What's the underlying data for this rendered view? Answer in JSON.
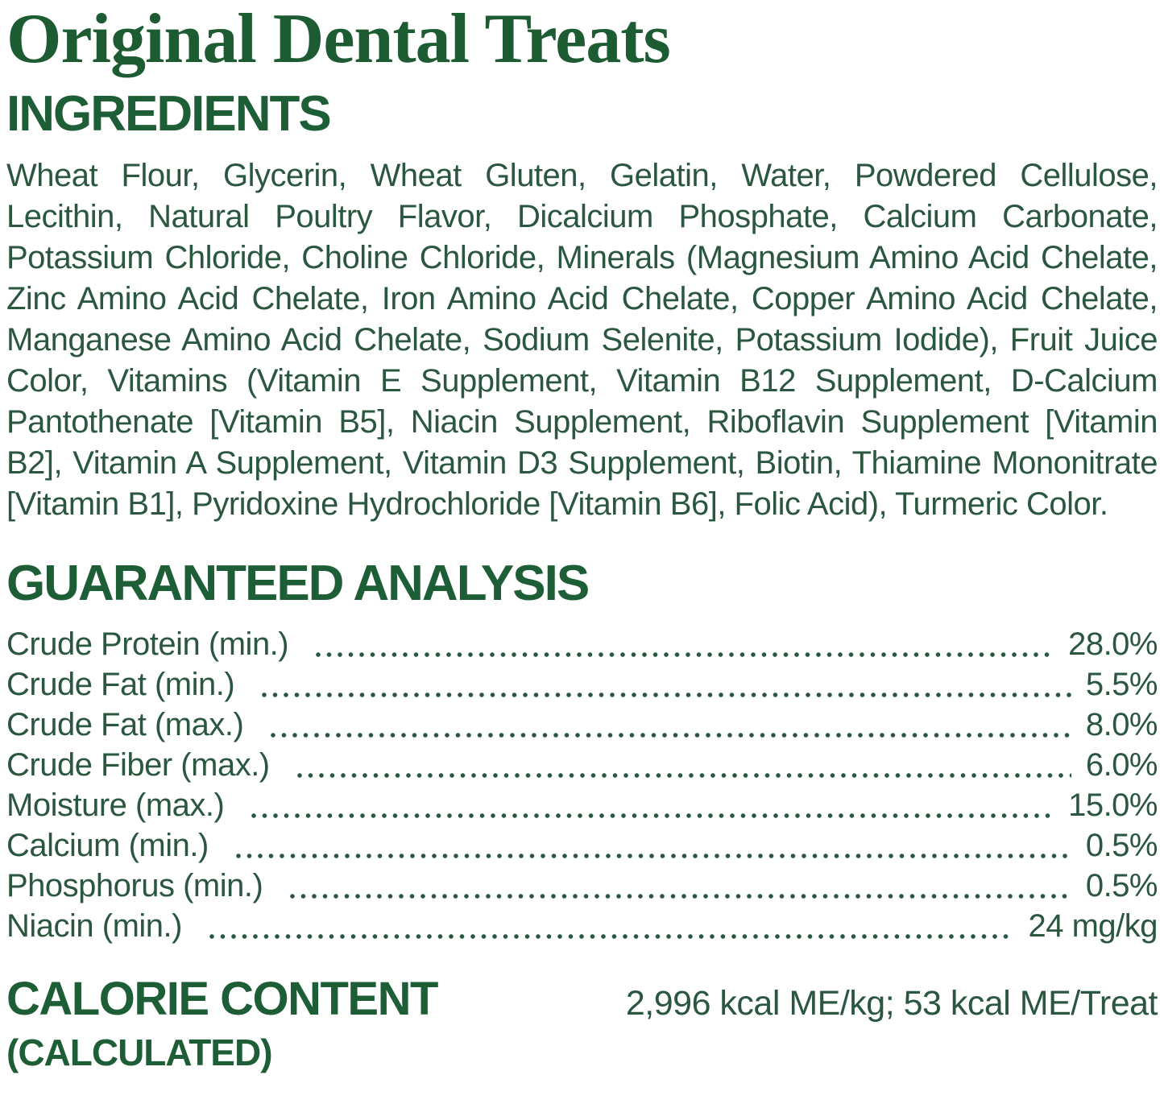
{
  "page": {
    "title": "Original Dental Treats"
  },
  "ingredients": {
    "heading": "INGREDIENTS",
    "text": "Wheat Flour, Glycerin, Wheat Gluten, Gelatin, Water, Powdered Cellulose, Lecithin, Natural Poultry Flavor, Dicalcium Phosphate, Calcium Carbonate, Potassium Chloride, Choline Chloride, Minerals (Magnesium Amino Acid Chelate, Zinc Amino Acid Chelate, Iron Amino Acid Chelate, Copper Amino Acid Chelate, Manganese Amino Acid Chelate, Sodium Selenite, Potassium Iodide), Fruit Juice Color, Vitamins (Vitamin E Supplement, Vitamin B12 Supplement, D-Calcium Pantothenate [Vitamin B5], Niacin Supplement, Riboflavin Supplement [Vitamin B2], Vitamin A Supplement, Vitamin D3 Supplement, Biotin, Thiamine Mononitrate [Vitamin B1], Pyridoxine Hydrochloride [Vitamin B6], Folic Acid), Turmeric Color."
  },
  "guaranteed_analysis": {
    "heading": "GUARANTEED ANALYSIS",
    "rows": [
      {
        "label": "Crude Protein (min.)",
        "value": "28.0%"
      },
      {
        "label": "Crude Fat (min.)",
        "value": "5.5%"
      },
      {
        "label": "Crude Fat (max.)",
        "value": "8.0%"
      },
      {
        "label": "Crude Fiber (max.)",
        "value": "6.0%"
      },
      {
        "label": "Moisture (max.)",
        "value": "15.0%"
      },
      {
        "label": "Calcium (min.)",
        "value": "0.5%"
      },
      {
        "label": "Phosphorus (min.)",
        "value": "0.5%"
      },
      {
        "label": "Niacin (min.)",
        "value": "24 mg/kg"
      }
    ]
  },
  "calorie_content": {
    "heading": "CALORIE CONTENT",
    "subheading": "(CALCULATED)",
    "value": "2,996 kcal ME/kg; 53 kcal ME/Treat"
  },
  "colors": {
    "title_green": "#1d5c32",
    "heading_green": "#1e5e36",
    "body_green": "#2b5741"
  }
}
